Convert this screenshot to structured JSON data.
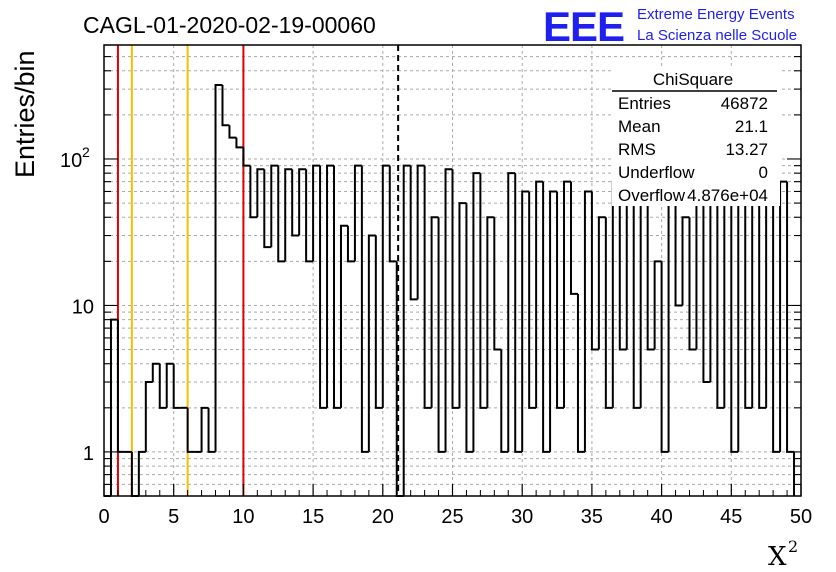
{
  "chart_data": {
    "type": "bar",
    "title": "CAGL-01-2020-02-19-00060",
    "ylabel": "Entries/bin",
    "xlabel_base": "X",
    "xlabel_sup": "2",
    "xlim": [
      0,
      50
    ],
    "ylim": [
      0.5,
      600
    ],
    "log_y": true,
    "grid": true,
    "bin_width": 0.5,
    "x_ticks": [
      "0",
      "5",
      "10",
      "15",
      "20",
      "25",
      "30",
      "35",
      "40",
      "45",
      "50"
    ],
    "y_ticks": [
      {
        "value": 1,
        "base": "1",
        "exp": ""
      },
      {
        "value": 10,
        "base": "10",
        "exp": ""
      },
      {
        "value": 100,
        "base": "10",
        "exp": "2"
      }
    ],
    "values": [
      0,
      8,
      1,
      1,
      0,
      1,
      3,
      4,
      2,
      4,
      2,
      2,
      1,
      1,
      2,
      1,
      320,
      170,
      140,
      120,
      90,
      40,
      85,
      25,
      90,
      20,
      85,
      30,
      85,
      20,
      90,
      2,
      90,
      2,
      35,
      20,
      90,
      1,
      30,
      2,
      90,
      20,
      0,
      90,
      11,
      90,
      2,
      40,
      1,
      85,
      2,
      50,
      1,
      80,
      2,
      40,
      5,
      1,
      80,
      1,
      60,
      2,
      70,
      1,
      60,
      2,
      70,
      12,
      1,
      60,
      5,
      40,
      2,
      70,
      5,
      60,
      2,
      55,
      5,
      20,
      1,
      60,
      10,
      40,
      5,
      50,
      3,
      70,
      2,
      70,
      1,
      80,
      2,
      50,
      2,
      60,
      1,
      70,
      1
    ],
    "vlines": [
      {
        "x": 1,
        "color": "#e00000",
        "style": "solid"
      },
      {
        "x": 2,
        "color": "#f5c000",
        "style": "solid"
      },
      {
        "x": 6,
        "color": "#f5c000",
        "style": "solid"
      },
      {
        "x": 10,
        "color": "#e00000",
        "style": "solid"
      },
      {
        "x": 21.1,
        "color": "#000000",
        "style": "dashed"
      }
    ],
    "stats": {
      "title": "ChiSquare",
      "rows": [
        {
          "label": "Entries",
          "value": "46872"
        },
        {
          "label": "Mean",
          "value": "21.1"
        },
        {
          "label": "RMS",
          "value": "13.27"
        },
        {
          "label": "Underflow",
          "value": "0"
        },
        {
          "label": "Overflow",
          "value": "4.876e+04"
        }
      ]
    }
  },
  "logo": {
    "mark": "EEE",
    "line1": "Extreme Energy Events",
    "line2": "La Scienza nelle Scuole",
    "color": "#1f1ff0"
  }
}
